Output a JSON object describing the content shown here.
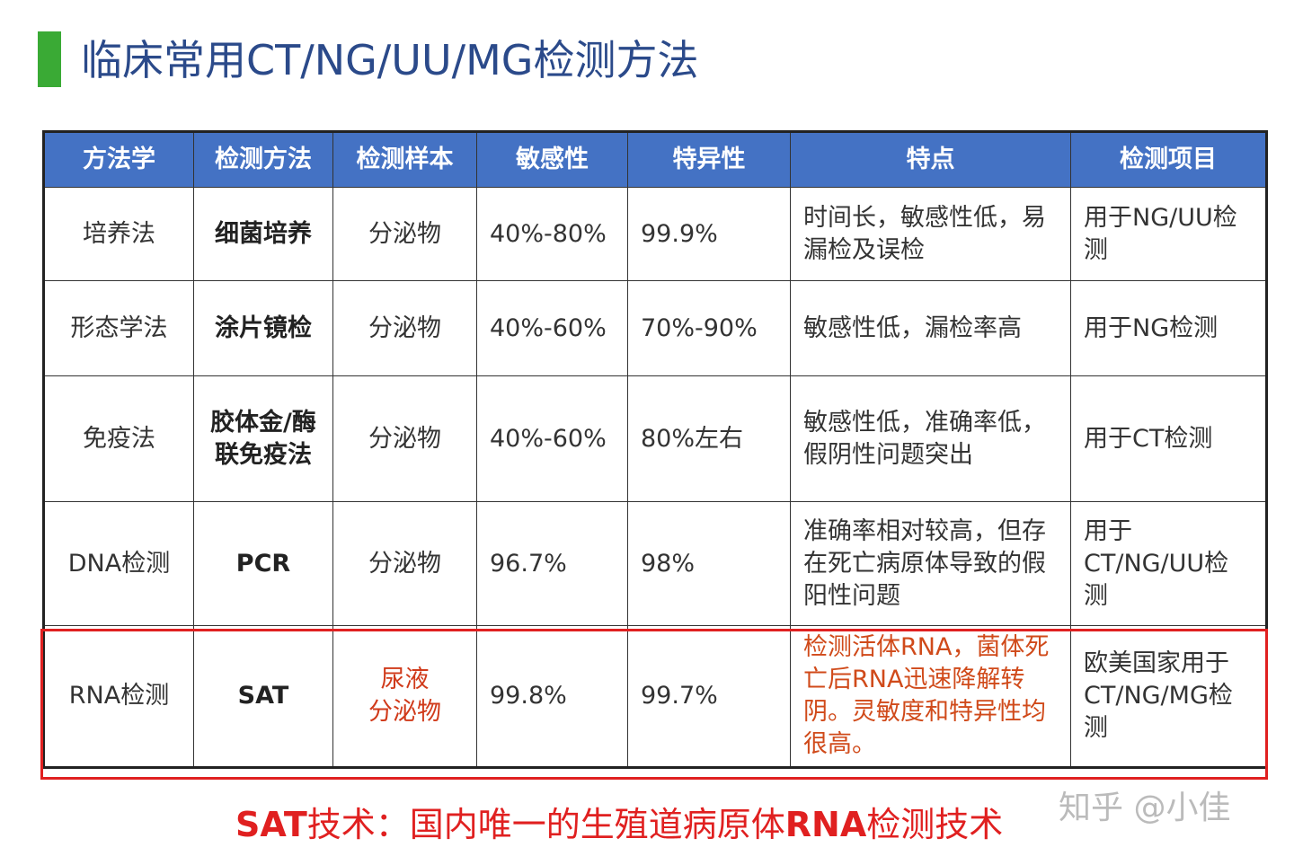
{
  "header": {
    "title": "临床常用CT/NG/UU/MG检测方法"
  },
  "table": {
    "columns": [
      "方法学",
      "检测方法",
      "检测样本",
      "敏感性",
      "特异性",
      "特点",
      "检测项目"
    ],
    "rows": [
      [
        "培养法",
        "细菌培养",
        "分泌物",
        "40%-80%",
        "99.9%",
        "时间长，敏感性低，易漏检及误检",
        "用于NG/UU检测"
      ],
      [
        "形态学法",
        "涂片镜检",
        "分泌物",
        "40%-60%",
        "70%-90%",
        "敏感性低，漏检率高",
        "用于NG检测"
      ],
      [
        "免疫法",
        "胶体金/酶联免疫法",
        "分泌物",
        "40%-60%",
        "80%左右",
        "敏感性低，准确率低，假阴性问题突出",
        "用于CT检测"
      ],
      [
        "DNA检测",
        "PCR",
        "分泌物",
        "96.7%",
        "98%",
        "准确率相对较高，但存在死亡病原体导致的假阳性问题",
        "用于CT/NG/UU检测"
      ],
      [
        "RNA检测",
        "SAT",
        "尿液\n分泌物",
        "99.8%",
        "99.7%",
        "检测活体RNA，菌体死亡后RNA迅速降解转阴。灵敏度和特异性均很高。",
        "欧美国家用于CT/NG/MG检测"
      ]
    ]
  },
  "footer": {
    "parts": [
      "SAT",
      "技术：国内唯一的生殖道病原体",
      "RNA",
      "检测技术"
    ]
  },
  "watermark": "知乎 @小佳"
}
